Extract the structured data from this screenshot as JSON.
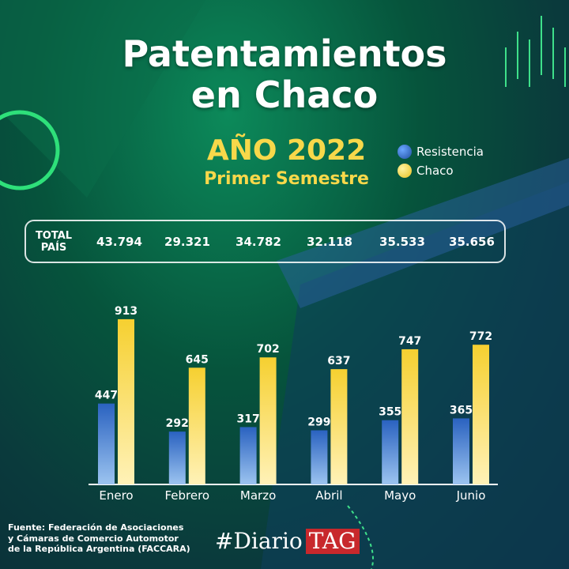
{
  "title": [
    "Patentamientos",
    "en Chaco"
  ],
  "year": "AÑO 2022",
  "subtitle": "Primer Semestre",
  "totals": {
    "label": [
      "TOTAL",
      "PAÍS"
    ],
    "values": [
      "43.794",
      "29.321",
      "34.782",
      "32.118",
      "35.533",
      "35.656"
    ]
  },
  "chart_data": {
    "type": "bar",
    "categories": [
      "Enero",
      "Febrero",
      "Marzo",
      "Abril",
      "Mayo",
      "Junio"
    ],
    "series": [
      {
        "name": "Resistencia",
        "values": [
          447,
          292,
          317,
          299,
          355,
          365
        ],
        "color": "#2f6fc4"
      },
      {
        "name": "Chaco",
        "values": [
          913,
          645,
          702,
          637,
          747,
          772
        ],
        "color": "#f7d84a"
      }
    ],
    "legend": "top-right",
    "grid": false
  },
  "source": [
    "Fuente: Federación de Asociaciones",
    "y Cámaras de Comercio Automotor",
    "de la República Argentina (FACCARA)"
  ],
  "brand": {
    "hash": "#Diario",
    "tag": "TAG"
  }
}
